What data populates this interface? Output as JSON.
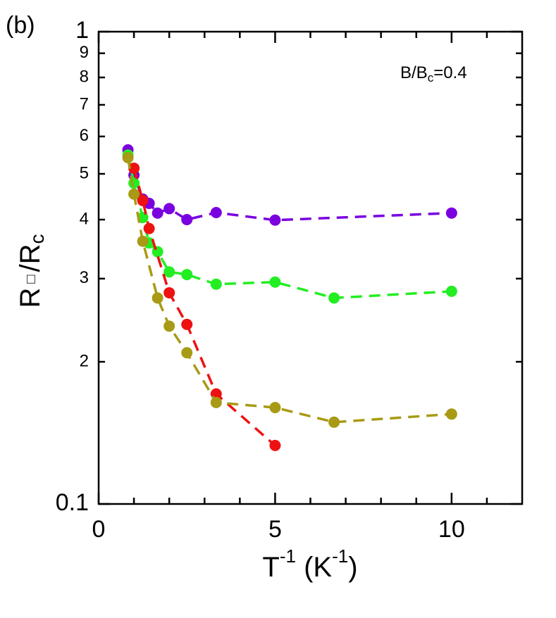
{
  "chart_data": {
    "type": "line",
    "panel_label": "(b)",
    "annotation": {
      "main": "B/B",
      "sub": "c",
      "rest": "=0.4"
    },
    "xlabel": {
      "main": "T",
      "sup": "-1",
      "mid": " (K",
      "sup2": "-1",
      "end": ")"
    },
    "ylabel": {
      "main": "R",
      "box": "□",
      "mid": "/R",
      "sub": "c"
    },
    "xlim": [
      0,
      12
    ],
    "xticks": [
      0,
      5,
      10
    ],
    "xticks_minor": [
      1,
      2,
      3,
      4,
      6,
      7,
      8,
      9,
      11
    ],
    "ylim": [
      0.1,
      1
    ],
    "log_y": true,
    "yticks": [
      0.1,
      {
        "value": 0.2,
        "label": "2"
      },
      {
        "value": 0.3,
        "label": "3"
      },
      {
        "value": 0.4,
        "label": "4"
      },
      {
        "value": 0.5,
        "label": "5"
      },
      {
        "value": 0.6,
        "label": "6"
      },
      {
        "value": 0.7,
        "label": "7"
      },
      {
        "value": 0.8,
        "label": "8"
      },
      {
        "value": 0.9,
        "label": "9"
      },
      1
    ],
    "series": [
      {
        "color": "#7a00e0",
        "x": [
          0.83,
          1,
          1.25,
          1.43,
          1.67,
          2,
          2.5,
          3.33,
          5,
          10
        ],
        "values": [
          0.562,
          0.497,
          0.442,
          0.433,
          0.413,
          0.422,
          0.4,
          0.414,
          0.399,
          0.413
        ]
      },
      {
        "color": "#22ee22",
        "x": [
          0.83,
          1,
          1.25,
          1.43,
          1.67,
          2,
          2.5,
          3.33,
          5,
          6.67,
          10
        ],
        "values": [
          0.548,
          0.478,
          0.404,
          0.357,
          0.342,
          0.31,
          0.306,
          0.292,
          0.295,
          0.273,
          0.282
        ]
      },
      {
        "color": "#ee1111",
        "x": [
          1,
          1.25,
          1.43,
          2,
          2.5,
          3.33,
          5
        ],
        "values": [
          0.514,
          0.439,
          0.383,
          0.28,
          0.24,
          0.171,
          0.133
        ]
      },
      {
        "color": "#a89a14",
        "x": [
          0.83,
          1,
          1.25,
          1.67,
          2,
          2.5,
          3.33,
          5,
          6.67,
          10
        ],
        "values": [
          0.541,
          0.453,
          0.36,
          0.273,
          0.238,
          0.209,
          0.164,
          0.16,
          0.149,
          0.155
        ]
      }
    ]
  }
}
